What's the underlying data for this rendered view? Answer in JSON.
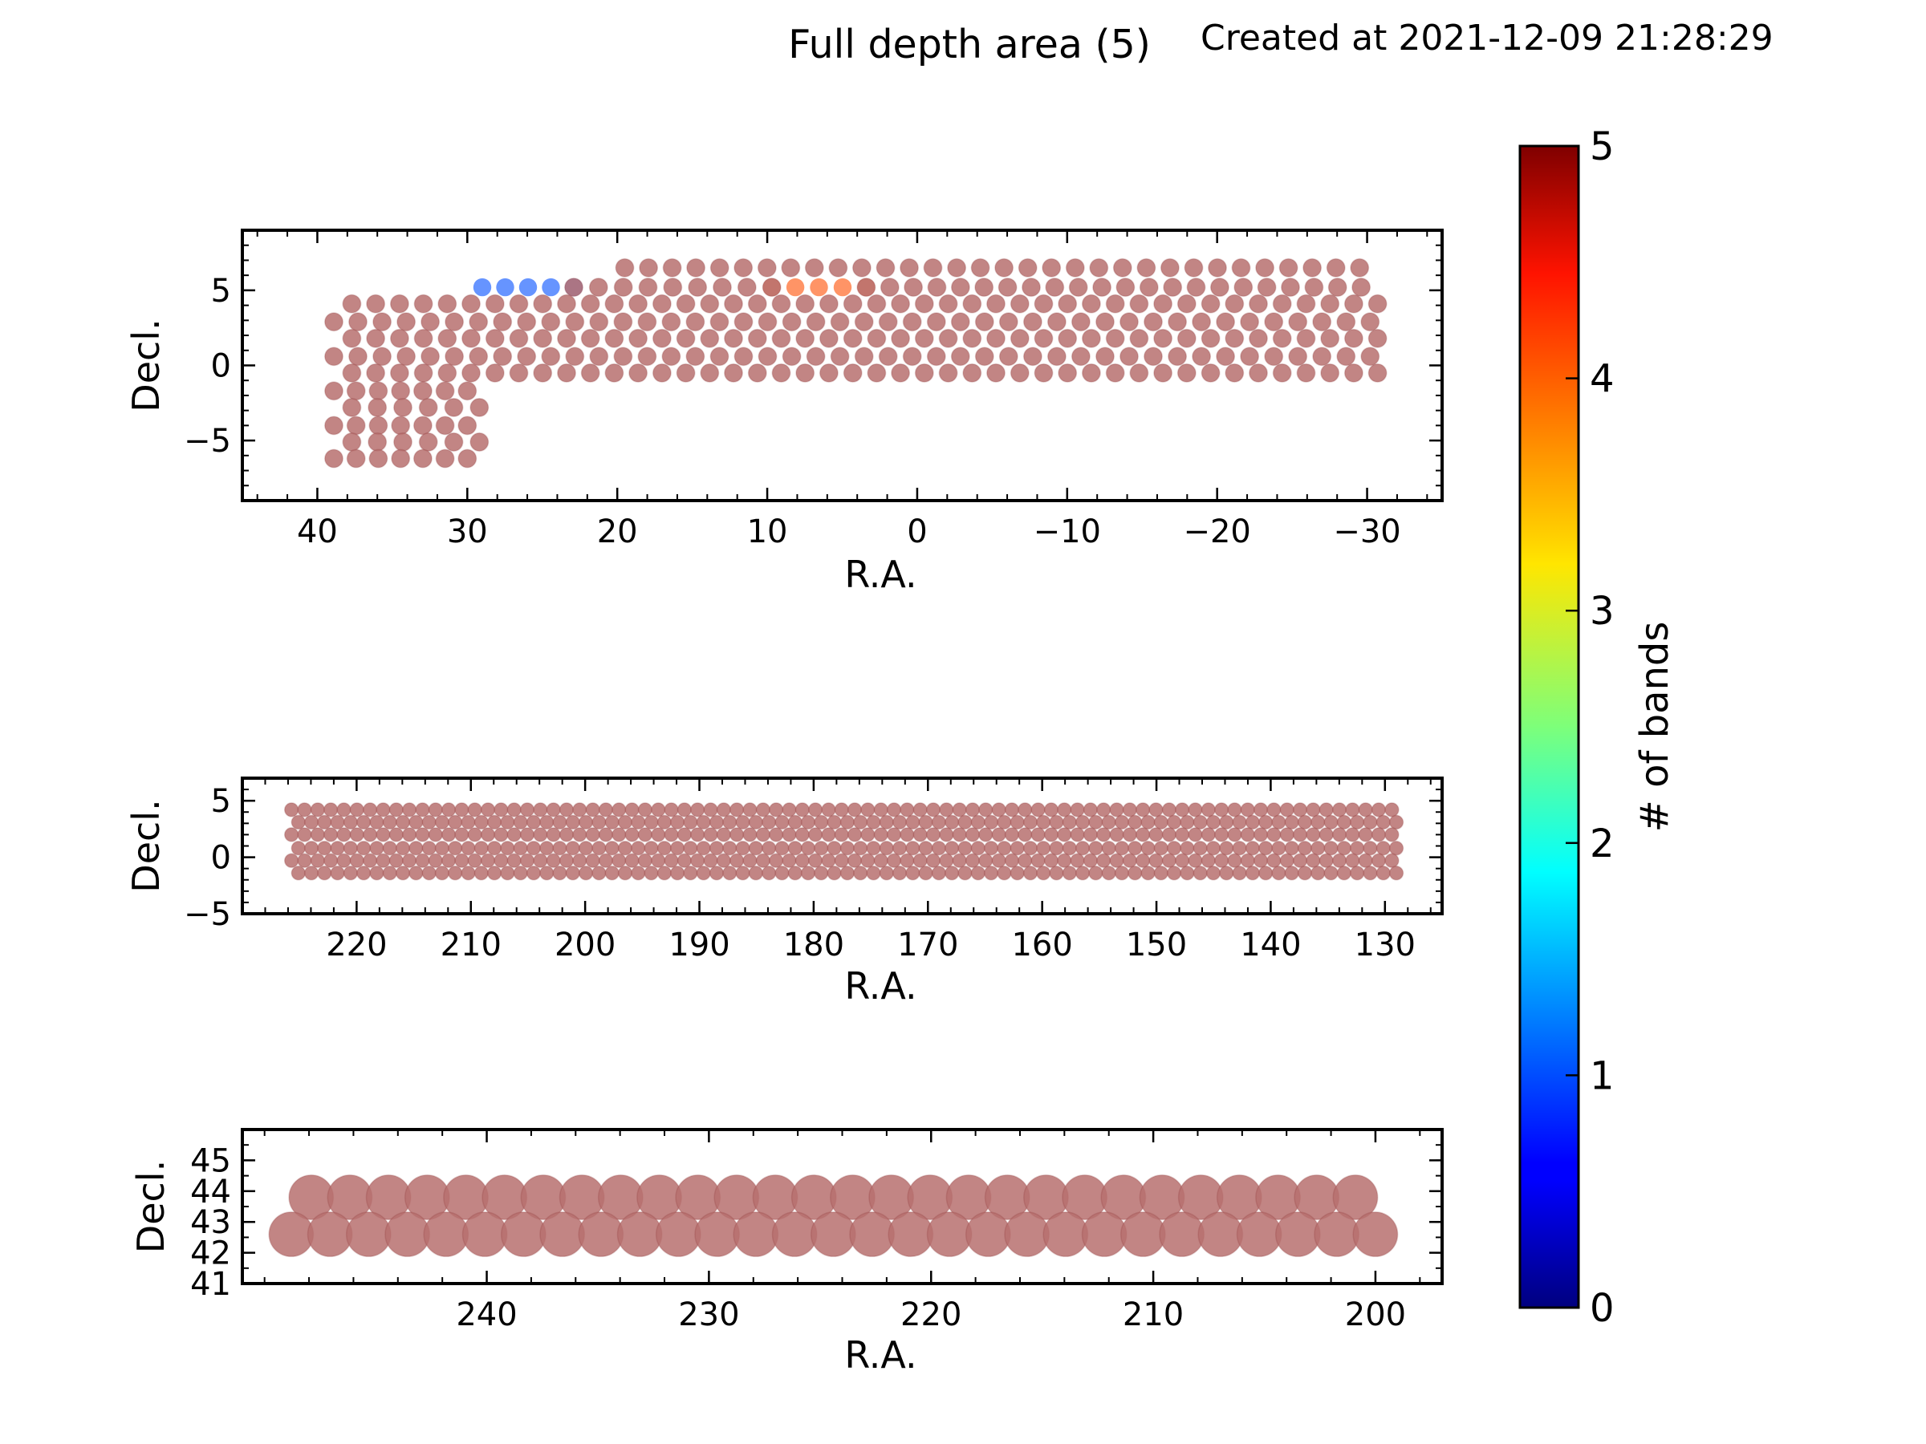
{
  "title": "Full depth area (5)",
  "created": "Created at 2021-12-09 21:28:29",
  "colorbar": {
    "label": "# of bands",
    "range": [
      0,
      5
    ],
    "ticks": [
      "0",
      "1",
      "2",
      "3",
      "4",
      "5"
    ],
    "colormap": "jet"
  },
  "chart_data": [
    {
      "type": "scatter",
      "xlabel": "R.A.",
      "ylabel": "Decl.",
      "xlim": [
        45,
        -35
      ],
      "ylim": [
        -9,
        9
      ],
      "xticks": [
        "40",
        "30",
        "20",
        "10",
        "0",
        "−10",
        "−20",
        "−30"
      ],
      "yticks": [
        "−5",
        "0",
        "5"
      ],
      "marker_color": "#b7706f",
      "marker_diameter_deg": 1.2,
      "fields": [
        {
          "dec": 6.5,
          "ra_from": 19.5,
          "ra_to": -29.5,
          "ra_step": 1.6,
          "value": 5
        },
        {
          "dec": 5.2,
          "ra_from": 9.7,
          "ra_to": 3.4,
          "ra_step": 1.6,
          "value": 4
        },
        {
          "dec": 5.2,
          "ra_from": 29.0,
          "ra_to": 22.9,
          "ra_step": 1.6,
          "value": 1
        },
        {
          "dec": 5.2,
          "ra_from": 22.9,
          "ra_to": 9.7,
          "ra_step": 1.6,
          "value": 5
        },
        {
          "dec": 5.2,
          "ra_from": 3.4,
          "ra_to": -29.6,
          "ra_step": 1.6,
          "value": 5
        },
        {
          "dec": 4.1,
          "ra_from": 37.7,
          "ra_to": -30.7,
          "ra_step": 1.6,
          "value": 5
        },
        {
          "dec": 2.9,
          "ra_from": 38.9,
          "ra_to": -30.2,
          "ra_step": 1.6,
          "value": 5
        },
        {
          "dec": 1.8,
          "ra_from": 37.7,
          "ra_to": -30.7,
          "ra_step": 1.6,
          "value": 5
        },
        {
          "dec": 0.6,
          "ra_from": 38.9,
          "ra_to": -30.2,
          "ra_step": 1.6,
          "value": 5
        },
        {
          "dec": -0.5,
          "ra_from": 37.7,
          "ra_to": -30.7,
          "ra_step": 1.6,
          "value": 5
        },
        {
          "dec": -1.7,
          "ra_from": 38.9,
          "ra_to": 30.0,
          "ra_step": 1.6,
          "value": 5
        },
        {
          "dec": -2.8,
          "ra_from": 37.7,
          "ra_to": 29.2,
          "ra_step": 1.6,
          "value": 5
        },
        {
          "dec": -4.0,
          "ra_from": 38.9,
          "ra_to": 30.0,
          "ra_step": 1.6,
          "value": 5
        },
        {
          "dec": -5.1,
          "ra_from": 37.7,
          "ra_to": 29.2,
          "ra_step": 1.6,
          "value": 5
        },
        {
          "dec": -6.2,
          "ra_from": 38.9,
          "ra_to": 30.0,
          "ra_step": 1.6,
          "value": 5
        }
      ]
    },
    {
      "type": "scatter",
      "xlabel": "R.A.",
      "ylabel": "Decl.",
      "xlim": [
        230,
        125
      ],
      "ylim": [
        -5,
        7
      ],
      "xticks": [
        "220",
        "210",
        "200",
        "190",
        "180",
        "170",
        "160",
        "150",
        "140",
        "130"
      ],
      "yticks": [
        "−5",
        "0",
        "5"
      ],
      "marker_color": "#b7706f",
      "marker_diameter_deg": 1.2,
      "fields": [
        {
          "dec": 4.2,
          "ra_from": 225.7,
          "ra_to": 129.4,
          "ra_step": 1.15,
          "value": 5
        },
        {
          "dec": 3.1,
          "ra_from": 225.1,
          "ra_to": 129.0,
          "ra_step": 1.15,
          "value": 5
        },
        {
          "dec": 2.0,
          "ra_from": 225.7,
          "ra_to": 129.4,
          "ra_step": 1.15,
          "value": 5
        },
        {
          "dec": 0.8,
          "ra_from": 225.1,
          "ra_to": 129.0,
          "ra_step": 1.15,
          "value": 5
        },
        {
          "dec": -0.3,
          "ra_from": 225.7,
          "ra_to": 129.4,
          "ra_step": 1.15,
          "value": 5
        },
        {
          "dec": -1.4,
          "ra_from": 225.1,
          "ra_to": 129.0,
          "ra_step": 1.15,
          "value": 5
        }
      ]
    },
    {
      "type": "scatter",
      "xlabel": "R.A.",
      "ylabel": "Decl.",
      "xlim": [
        251,
        197
      ],
      "ylim": [
        41,
        46
      ],
      "xticks": [
        "240",
        "230",
        "220",
        "210",
        "200"
      ],
      "yticks": [
        "41",
        "42",
        "43",
        "44",
        "45"
      ],
      "marker_color": "#b7706f",
      "marker_diameter_deg": 2.0,
      "fields": [
        {
          "dec": 43.8,
          "ra_from": 247.9,
          "ra_to": 200.9,
          "ra_step": 1.76,
          "value": 5
        },
        {
          "dec": 42.6,
          "ra_from": 248.8,
          "ra_to": 200.0,
          "ra_step": 1.76,
          "value": 5
        }
      ]
    }
  ]
}
